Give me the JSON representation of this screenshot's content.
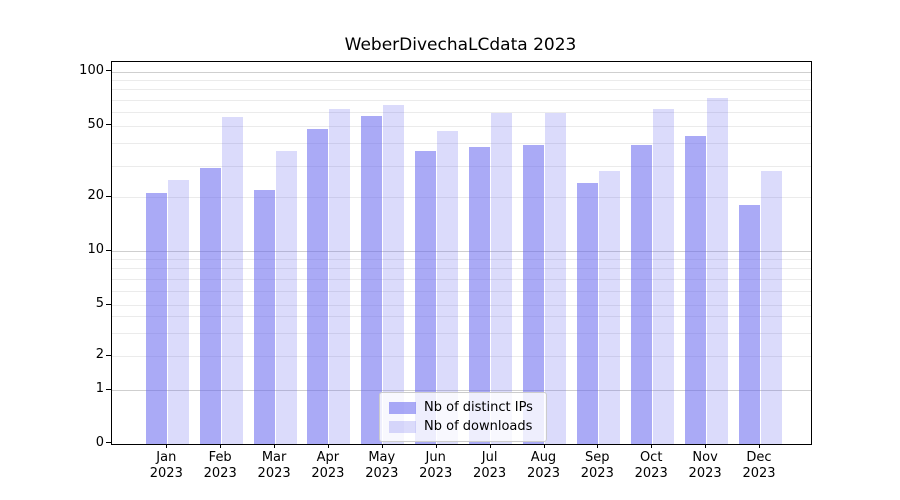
{
  "title": "WeberDivechaLCdata 2023",
  "chart_data": {
    "type": "bar",
    "categories": [
      "Jan",
      "Feb",
      "Mar",
      "Apr",
      "May",
      "Jun",
      "Jul",
      "Aug",
      "Sep",
      "Oct",
      "Nov",
      "Dec"
    ],
    "year_label": "2023",
    "series": [
      {
        "name": "Nb of distinct IPs",
        "color": "rgba(101,101,238,0.55)",
        "values": [
          21,
          29,
          22,
          48,
          57,
          36,
          38,
          39,
          24,
          39,
          44,
          18
        ]
      },
      {
        "name": "Nb of downloads",
        "color": "rgba(101,101,238,0.23)",
        "values": [
          25,
          56,
          36,
          62,
          65,
          47,
          59,
          59,
          28,
          62,
          71,
          28
        ]
      }
    ],
    "xlabel": "",
    "ylabel": "",
    "yscale": "symlog",
    "ylim": [
      0,
      113
    ],
    "y_ticks": [
      0,
      1,
      2,
      5,
      10,
      20,
      50,
      100
    ],
    "y_minor_gridlines": [
      2,
      3,
      4,
      5,
      6,
      7,
      8,
      9,
      20,
      30,
      40,
      50,
      60,
      70,
      80,
      90
    ],
    "y_major_gridlines": [
      1,
      10,
      100
    ],
    "grid": "horizontal",
    "legend_position": "lower center"
  },
  "colors": {
    "bar_dark": "rgba(101,101,238,0.55)",
    "bar_light": "rgba(101,101,238,0.23)",
    "grid_major": "#cfcfcf",
    "grid_minor": "#ebebeb",
    "spine": "#000000",
    "legend_border": "#cccccc",
    "legend_bg": "rgba(255,255,255,0.8)"
  }
}
